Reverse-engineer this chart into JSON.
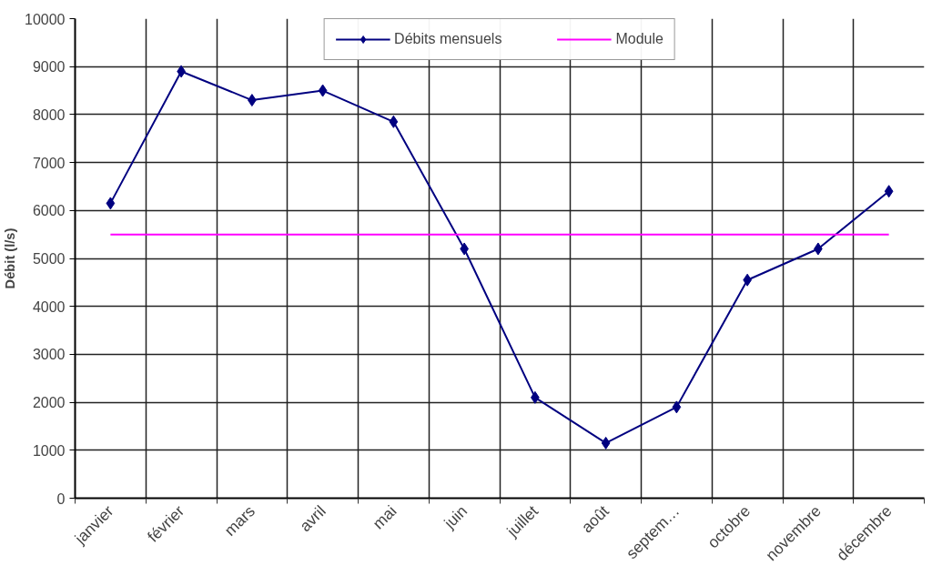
{
  "chart_data": {
    "type": "line",
    "ylabel": "Débit (l/s)",
    "categories": [
      "janvier",
      "février",
      "mars",
      "avril",
      "mai",
      "juin",
      "juillet",
      "août",
      "septem…",
      "octobre",
      "novembre",
      "décembre"
    ],
    "series": [
      {
        "name": "Débits mensuels",
        "color": "#000080",
        "marker": "diamond",
        "values": [
          6150,
          8900,
          8300,
          8500,
          7850,
          5200,
          2100,
          1150,
          1900,
          4550,
          5200,
          6400
        ]
      },
      {
        "name": "Module",
        "color": "#ff00ff",
        "marker": "none",
        "values": [
          5500,
          5500,
          5500,
          5500,
          5500,
          5500,
          5500,
          5500,
          5500,
          5500,
          5500,
          5500
        ]
      }
    ],
    "ylim": [
      0,
      10000
    ],
    "yticks": [
      0,
      1000,
      2000,
      3000,
      4000,
      5000,
      6000,
      7000,
      8000,
      9000,
      10000
    ],
    "grid": true,
    "legend": "top"
  }
}
